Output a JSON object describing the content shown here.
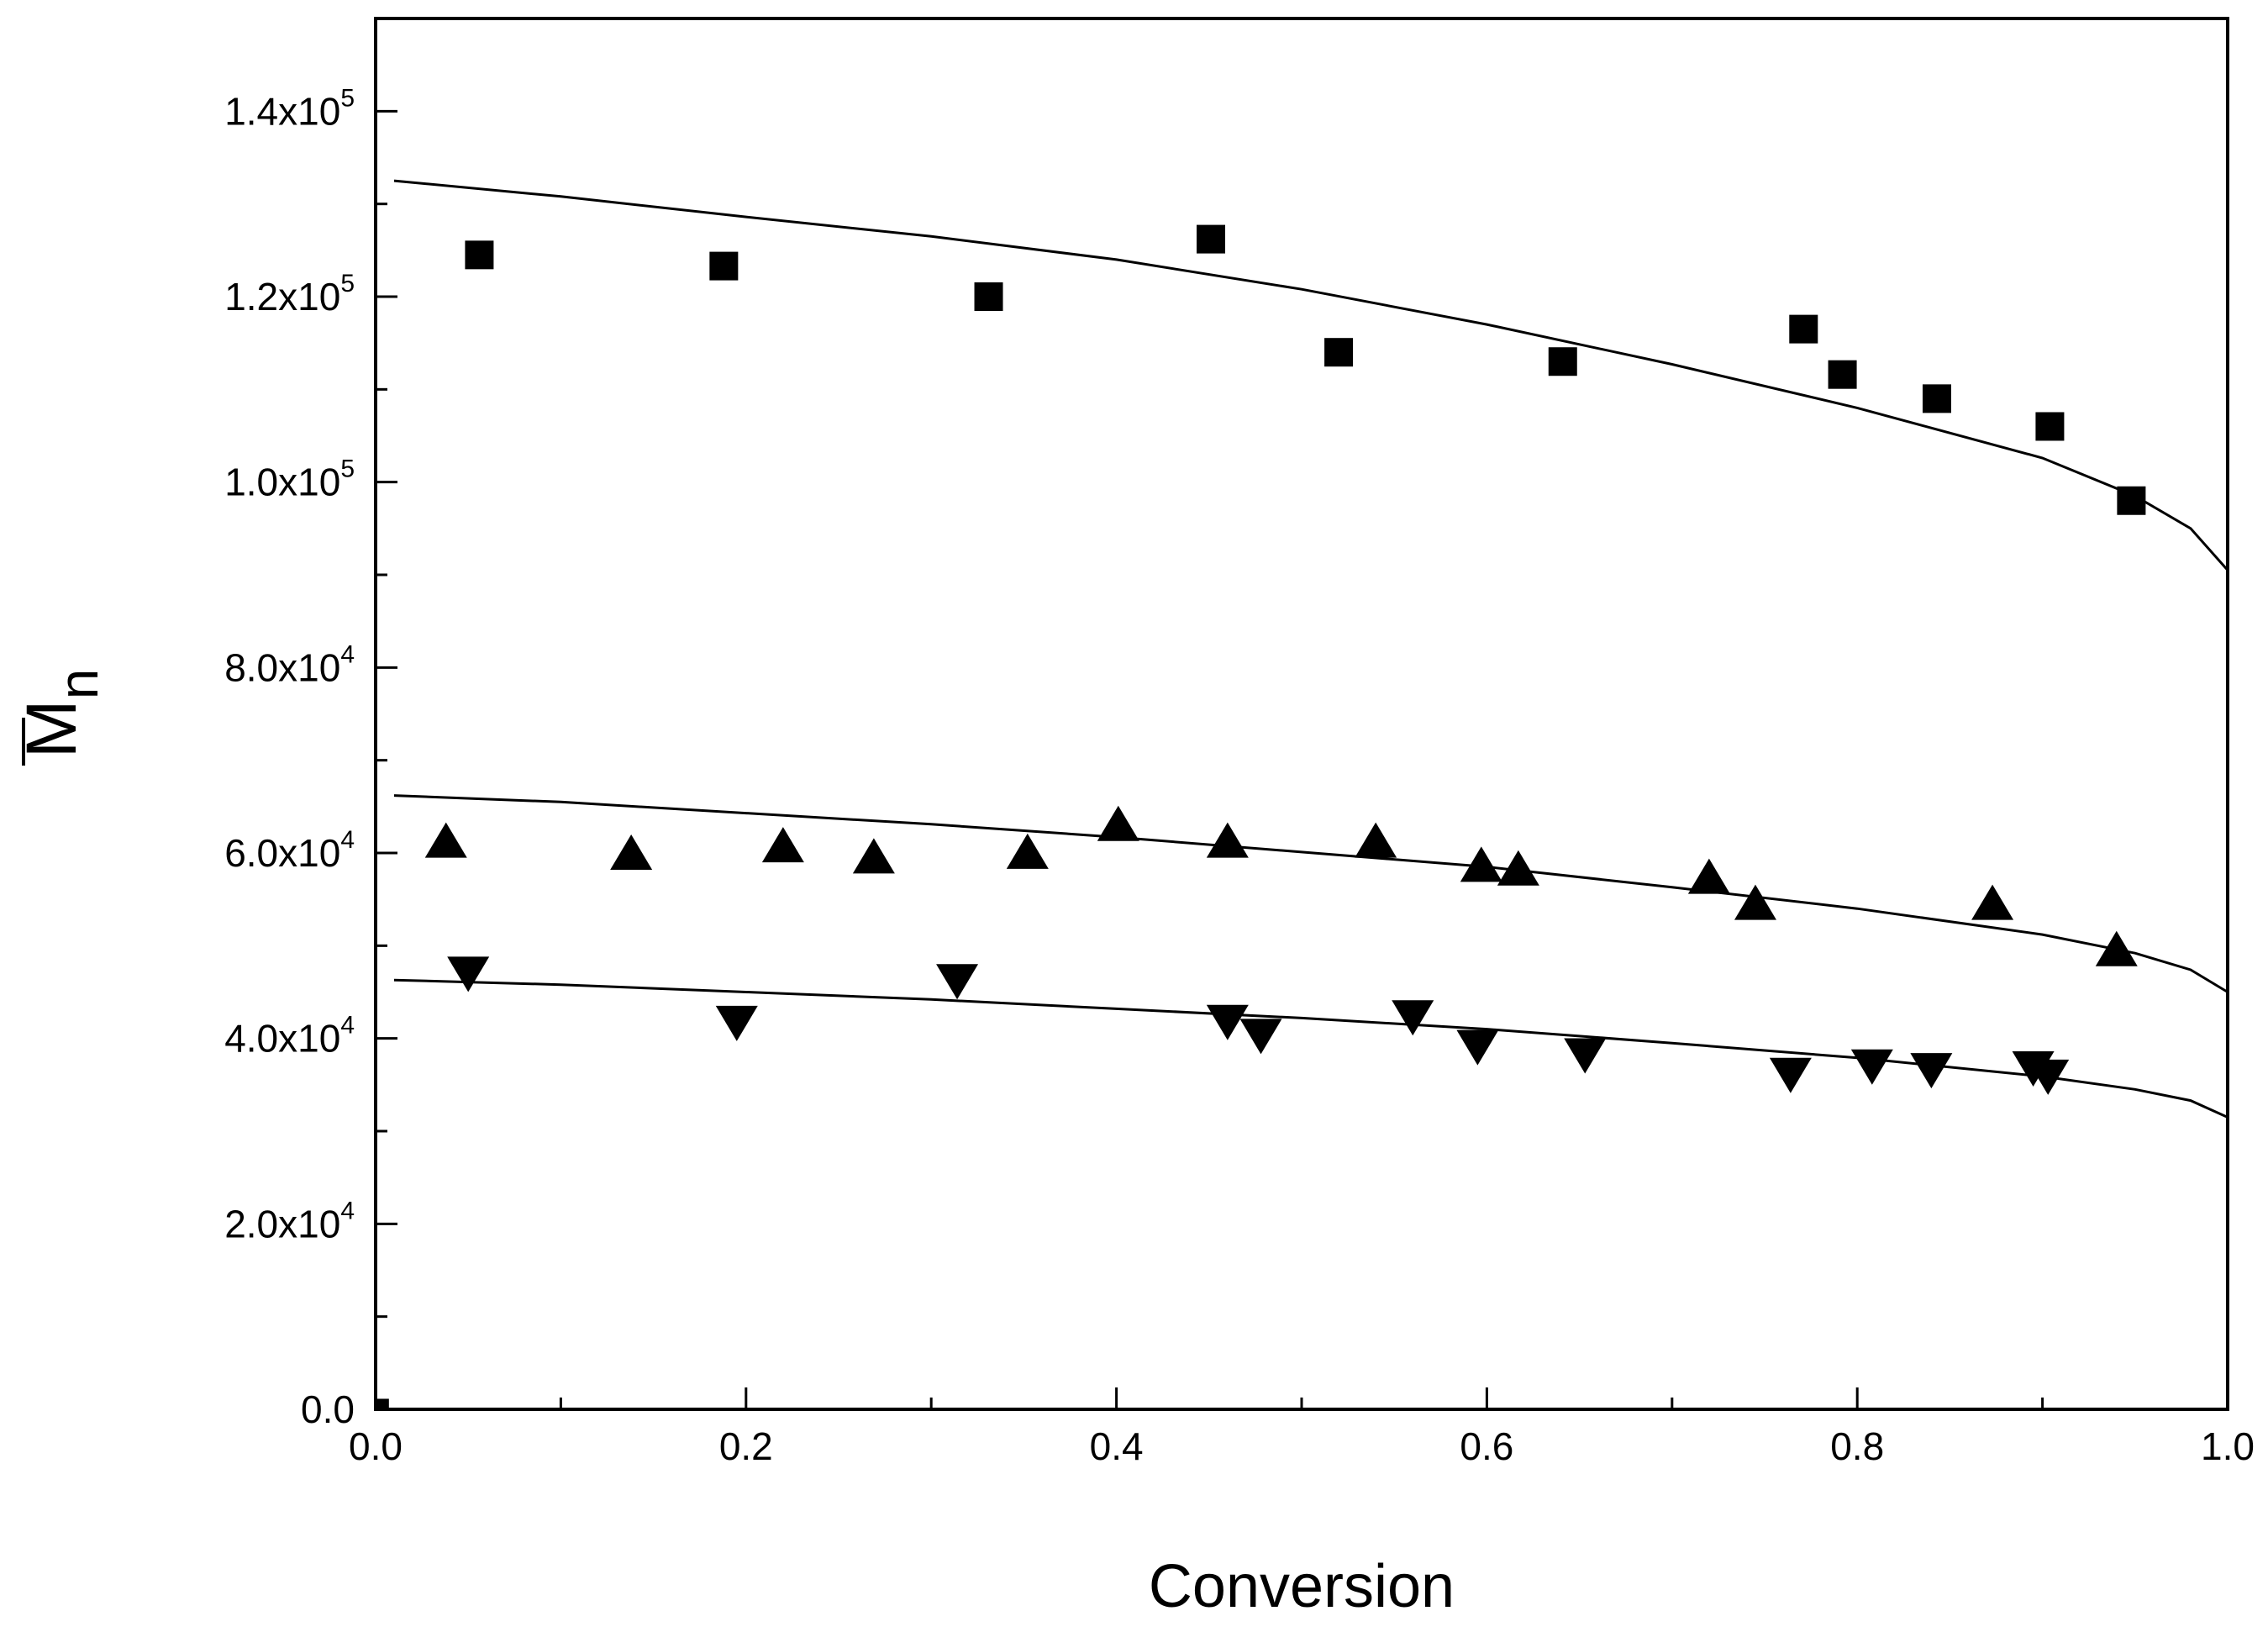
{
  "chart_data": {
    "type": "scatter",
    "title": "",
    "xlabel": "Conversion",
    "ylabel": {
      "main": "M",
      "subscript": "n",
      "overline": true
    },
    "xlim": [
      0.0,
      1.0
    ],
    "ylim": [
      0,
      150000
    ],
    "x_ticks": [
      {
        "value": 0.0,
        "label": "0.0"
      },
      {
        "value": 0.2,
        "label": "0.2"
      },
      {
        "value": 0.4,
        "label": "0.4"
      },
      {
        "value": 0.6,
        "label": "0.6"
      },
      {
        "value": 0.8,
        "label": "0.8"
      },
      {
        "value": 1.0,
        "label": "1.0"
      }
    ],
    "x_minor_step": 0.1,
    "y_ticks": [
      {
        "value": 0,
        "label": "0.0",
        "mantissa": "",
        "exponent": ""
      },
      {
        "value": 20000,
        "label": "2.0x10^4",
        "mantissa": "2.0x10",
        "exponent": "4"
      },
      {
        "value": 40000,
        "label": "4.0x10^4",
        "mantissa": "4.0x10",
        "exponent": "4"
      },
      {
        "value": 60000,
        "label": "6.0x10^4",
        "mantissa": "6.0x10",
        "exponent": "4"
      },
      {
        "value": 80000,
        "label": "8.0x10^4",
        "mantissa": "8.0x10",
        "exponent": "4"
      },
      {
        "value": 100000,
        "label": "1.0x10^5",
        "mantissa": "1.0x10",
        "exponent": "5"
      },
      {
        "value": 120000,
        "label": "1.2x10^5",
        "mantissa": "1.2x10",
        "exponent": "5"
      },
      {
        "value": 140000,
        "label": "1.4x10^5",
        "mantissa": "1.4x10",
        "exponent": "5"
      }
    ],
    "y_minor_step": 10000,
    "grid": false,
    "legend": "none",
    "series": [
      {
        "name": "squares",
        "marker": "square",
        "color": "#000000",
        "points": [
          [
            0.056,
            124500
          ],
          [
            0.188,
            123300
          ],
          [
            0.331,
            120000
          ],
          [
            0.451,
            126200
          ],
          [
            0.52,
            114000
          ],
          [
            0.641,
            113000
          ],
          [
            0.771,
            116500
          ],
          [
            0.792,
            111600
          ],
          [
            0.843,
            109000
          ],
          [
            0.904,
            106000
          ],
          [
            0.948,
            98000
          ]
        ]
      },
      {
        "name": "triangles-up",
        "marker": "triangle-up",
        "color": "#000000",
        "points": [
          [
            0.038,
            61300
          ],
          [
            0.138,
            60000
          ],
          [
            0.22,
            60800
          ],
          [
            0.269,
            59600
          ],
          [
            0.352,
            60100
          ],
          [
            0.401,
            63100
          ],
          [
            0.46,
            61300
          ],
          [
            0.54,
            61300
          ],
          [
            0.597,
            58700
          ],
          [
            0.617,
            58300
          ],
          [
            0.72,
            57400
          ],
          [
            0.745,
            54600
          ],
          [
            0.873,
            54600
          ],
          [
            0.94,
            49600
          ]
        ]
      },
      {
        "name": "triangles-down",
        "marker": "triangle-down",
        "color": "#000000",
        "points": [
          [
            0.05,
            47000
          ],
          [
            0.195,
            41700
          ],
          [
            0.314,
            46200
          ],
          [
            0.46,
            41800
          ],
          [
            0.478,
            40300
          ],
          [
            0.56,
            42300
          ],
          [
            0.595,
            39100
          ],
          [
            0.653,
            38200
          ],
          [
            0.764,
            36100
          ],
          [
            0.808,
            37000
          ],
          [
            0.84,
            36600
          ],
          [
            0.895,
            36800
          ],
          [
            0.903,
            35900
          ]
        ]
      },
      {
        "name": "origin-point",
        "marker": "square",
        "color": "#000000",
        "points": [
          [
            0.004,
            500
          ]
        ]
      }
    ],
    "fit_lines": [
      {
        "name": "fit-squares",
        "color": "#000000",
        "points": [
          [
            0.01,
            132500
          ],
          [
            0.1,
            130800
          ],
          [
            0.2,
            128600
          ],
          [
            0.3,
            126500
          ],
          [
            0.4,
            124000
          ],
          [
            0.5,
            120800
          ],
          [
            0.6,
            117000
          ],
          [
            0.7,
            112700
          ],
          [
            0.8,
            108000
          ],
          [
            0.9,
            102600
          ],
          [
            0.95,
            98500
          ],
          [
            0.98,
            95000
          ],
          [
            1.0,
            90500
          ]
        ]
      },
      {
        "name": "fit-triangles-up",
        "color": "#000000",
        "points": [
          [
            0.01,
            66200
          ],
          [
            0.1,
            65500
          ],
          [
            0.2,
            64300
          ],
          [
            0.3,
            63100
          ],
          [
            0.4,
            61700
          ],
          [
            0.5,
            60100
          ],
          [
            0.6,
            58500
          ],
          [
            0.7,
            56300
          ],
          [
            0.8,
            54000
          ],
          [
            0.9,
            51200
          ],
          [
            0.95,
            49200
          ],
          [
            0.98,
            47400
          ],
          [
            1.0,
            45000
          ]
        ]
      },
      {
        "name": "fit-triangles-down",
        "color": "#000000",
        "points": [
          [
            0.01,
            46300
          ],
          [
            0.1,
            45800
          ],
          [
            0.2,
            45000
          ],
          [
            0.3,
            44200
          ],
          [
            0.4,
            43200
          ],
          [
            0.5,
            42200
          ],
          [
            0.6,
            41000
          ],
          [
            0.7,
            39500
          ],
          [
            0.8,
            37900
          ],
          [
            0.9,
            35900
          ],
          [
            0.95,
            34500
          ],
          [
            0.98,
            33300
          ],
          [
            1.0,
            31500
          ]
        ]
      }
    ]
  }
}
